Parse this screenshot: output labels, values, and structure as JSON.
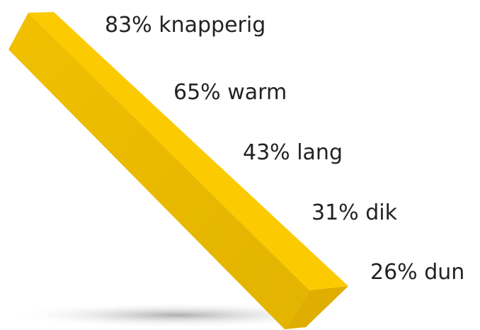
{
  "labels": [
    "83% knapperig",
    "65% warm",
    "43% lang",
    "31% dik",
    "26% dun"
  ]
}
